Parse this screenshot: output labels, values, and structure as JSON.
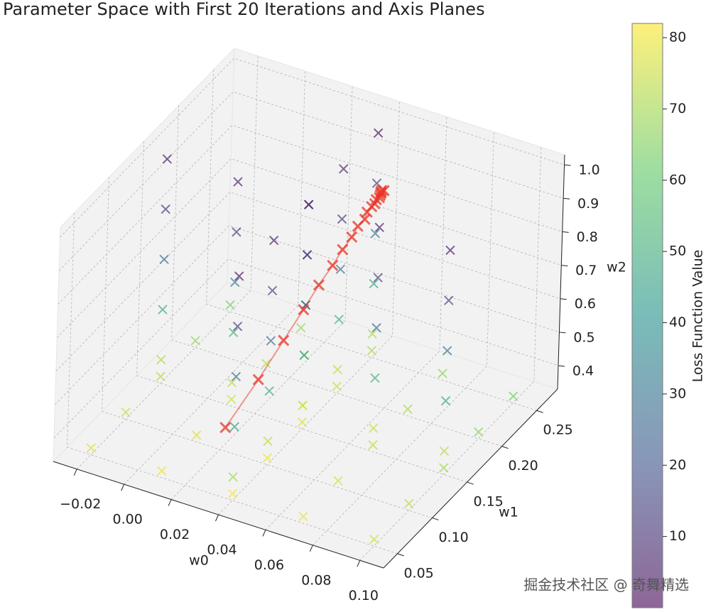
{
  "chart_data": {
    "type": "scatter3d",
    "title": "Parameter Space with First 20 Iterations and Axis Planes",
    "xlabel": "w0",
    "ylabel": "w1",
    "zlabel": "w2",
    "colorbar_label": "Loss Function Value",
    "watermark": "掘金技术社区 @ 奇舞精选",
    "xlim": [
      -0.03,
      0.11
    ],
    "ylim": [
      0.03,
      0.28
    ],
    "zlim": [
      0.33,
      1.03
    ],
    "clim": [
      0,
      82
    ],
    "xticks": [
      {
        "value": -0.02,
        "label": "−0.02"
      },
      {
        "value": 0,
        "label": "0.00"
      },
      0.02,
      0.04,
      0.06,
      0.08,
      {
        "value": 0.1,
        "label": "0.10"
      }
    ],
    "yticks": [
      0.05,
      {
        "value": 0.1,
        "label": "0.10"
      },
      0.15,
      {
        "value": 0.2,
        "label": "0.20"
      },
      0.25
    ],
    "zticks": [
      0.4,
      0.5,
      0.6,
      0.7,
      0.8,
      0.9,
      {
        "value": 1.0,
        "label": "1.0"
      }
    ],
    "cticks": [
      10,
      20,
      30,
      40,
      50,
      60,
      70,
      80
    ],
    "grid": true,
    "points": {
      "x": [
        -0.02,
        0.01,
        0.04,
        0.07,
        0.1,
        -0.02,
        0.01,
        0.04,
        0.07,
        0.1,
        -0.02,
        0.01,
        0.04,
        0.07,
        0.1,
        -0.02,
        0.01,
        0.04,
        0.07,
        0.1,
        -0.02,
        0.01,
        0.04,
        0.07,
        0.1,
        0.04,
        0.04,
        0.04,
        0.04,
        0.04,
        0.04,
        0.04,
        0.04,
        0.04,
        0.04,
        0.04,
        0.04,
        0.04,
        0.04,
        0.04,
        0.04,
        0.04,
        0.04,
        0.04,
        0.04,
        0.04,
        0.04,
        0.04,
        0.04,
        0.04,
        -0.02,
        0.01,
        0.04,
        0.07,
        0.1,
        -0.02,
        0.01,
        0.04,
        0.07,
        0.1,
        -0.02,
        0.01,
        0.04,
        0.07,
        0.1,
        -0.02,
        0.01,
        0.04,
        0.07,
        0.1,
        -0.02,
        0.01,
        0.04,
        0.07,
        0.1
      ],
      "y": [
        0.15,
        0.15,
        0.15,
        0.15,
        0.15,
        0.15,
        0.15,
        0.15,
        0.15,
        0.15,
        0.15,
        0.15,
        0.15,
        0.15,
        0.15,
        0.15,
        0.15,
        0.15,
        0.15,
        0.15,
        0.15,
        0.15,
        0.15,
        0.15,
        0.15,
        0.05,
        0.1,
        0.15,
        0.2,
        0.25,
        0.05,
        0.1,
        0.15,
        0.2,
        0.25,
        0.05,
        0.1,
        0.15,
        0.2,
        0.25,
        0.05,
        0.1,
        0.15,
        0.2,
        0.25,
        0.05,
        0.1,
        0.15,
        0.2,
        0.25,
        0.05,
        0.05,
        0.05,
        0.05,
        0.05,
        0.1,
        0.1,
        0.1,
        0.1,
        0.1,
        0.15,
        0.15,
        0.15,
        0.15,
        0.15,
        0.2,
        0.2,
        0.2,
        0.2,
        0.2,
        0.25,
        0.25,
        0.25,
        0.25,
        0.25
      ],
      "z": [
        0.4,
        0.4,
        0.4,
        0.4,
        0.4,
        0.55,
        0.55,
        0.55,
        0.55,
        0.55,
        0.7,
        0.7,
        0.7,
        0.7,
        0.7,
        0.85,
        0.85,
        0.85,
        0.85,
        0.85,
        1.0,
        1.0,
        1.0,
        1.0,
        1.0,
        0.4,
        0.4,
        0.4,
        0.4,
        0.4,
        0.55,
        0.55,
        0.55,
        0.55,
        0.55,
        0.7,
        0.7,
        0.7,
        0.7,
        0.7,
        0.85,
        0.85,
        0.85,
        0.85,
        0.85,
        1.0,
        1.0,
        1.0,
        1.0,
        1.0,
        0.35,
        0.35,
        0.35,
        0.35,
        0.35,
        0.35,
        0.35,
        0.35,
        0.35,
        0.35,
        0.35,
        0.35,
        0.35,
        0.35,
        0.35,
        0.35,
        0.35,
        0.35,
        0.35,
        0.35,
        0.35,
        0.35,
        0.35,
        0.35,
        0.35
      ],
      "c": [
        72,
        74,
        76,
        75,
        73,
        48,
        50,
        52,
        51,
        49,
        28,
        30,
        31,
        30,
        29,
        13,
        14,
        15,
        14,
        13,
        4,
        5,
        6,
        5,
        4,
        70,
        73,
        76,
        74,
        71,
        46,
        49,
        52,
        50,
        47,
        27,
        29,
        31,
        30,
        28,
        12,
        14,
        15,
        14,
        12,
        3,
        5,
        6,
        5,
        3,
        78,
        80,
        81,
        79,
        76,
        75,
        78,
        80,
        77,
        73,
        72,
        76,
        78,
        74,
        70,
        68,
        72,
        75,
        71,
        67,
        64,
        68,
        71,
        67,
        63
      ]
    },
    "iterations": {
      "color": "#e8372a",
      "x": [
        0.022,
        0.029,
        0.034,
        0.038,
        0.041,
        0.044,
        0.046,
        0.048,
        0.049,
        0.051,
        0.051,
        0.052,
        0.053,
        0.053,
        0.054,
        0.054,
        0.054,
        0.054,
        0.054,
        0.055
      ],
      "y": [
        0.1,
        0.122,
        0.14,
        0.154,
        0.165,
        0.174,
        0.181,
        0.187,
        0.192,
        0.195,
        0.198,
        0.201,
        0.202,
        0.204,
        0.205,
        0.206,
        0.207,
        0.207,
        0.208,
        0.208
      ],
      "z": [
        0.4,
        0.512,
        0.602,
        0.673,
        0.73,
        0.776,
        0.813,
        0.842,
        0.866,
        0.885,
        0.9,
        0.912,
        0.921,
        0.929,
        0.935,
        0.94,
        0.944,
        0.947,
        0.95,
        0.952
      ]
    }
  }
}
